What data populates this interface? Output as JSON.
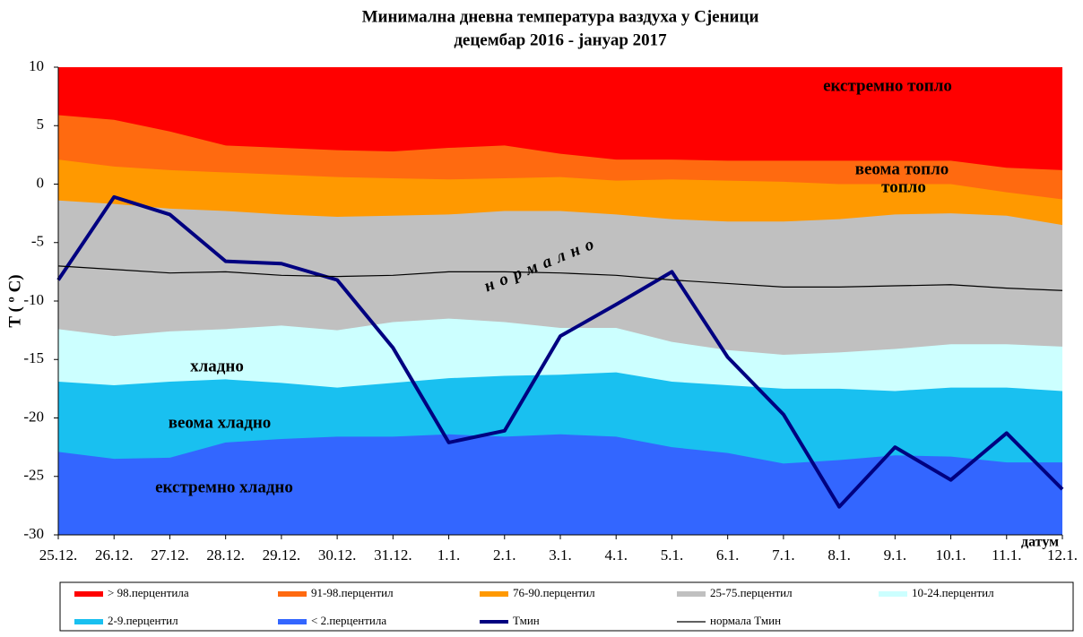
{
  "chart_data": {
    "type": "band",
    "title": "Минимална дневна температура ваздуха у Сјеници",
    "subtitle": "децембар 2016 - јануар 2017",
    "y_label": "T ( º C)",
    "x_label": "датум",
    "categories": [
      "25.12.",
      "26.12.",
      "27.12.",
      "28.12.",
      "29.12.",
      "30.12.",
      "31.12.",
      "1.1.",
      "2.1.",
      "3.1.",
      "4.1.",
      "5.1.",
      "6.1.",
      "7.1.",
      "8.1.",
      "9.1.",
      "10.1.",
      "11.1.",
      "12.1."
    ],
    "ylim": [
      -30,
      10
    ],
    "yticks": [
      10,
      5,
      0,
      -5,
      -10,
      -15,
      -20,
      -25,
      -30
    ],
    "annotations": [
      "екстремно топло",
      "веома топло",
      "топло",
      "нормално",
      "хладно",
      "веома хладно",
      "екстремно хладно"
    ],
    "series": [
      {
        "name": "> 98.перцентила",
        "color": "#ff0000"
      },
      {
        "name": "91-98.перцентил",
        "color": "#ff6a10",
        "values": [
          5.9,
          5.5,
          4.5,
          3.3,
          3.1,
          2.9,
          2.8,
          3.1,
          3.3,
          2.6,
          2.1,
          2.1,
          2.0,
          2.0,
          2.0,
          2.0,
          2.0,
          1.4,
          1.2
        ]
      },
      {
        "name": "76-90.перцентил",
        "color": "#ff9900",
        "values": [
          2.1,
          1.5,
          1.2,
          1.0,
          0.8,
          0.6,
          0.5,
          0.4,
          0.5,
          0.6,
          0.3,
          0.4,
          0.3,
          0.2,
          0,
          0,
          0,
          -0.7,
          -1.3
        ]
      },
      {
        "name": "25-75.перцентил",
        "color": "#c0c0c0",
        "values": [
          -1.4,
          -1.7,
          -2.1,
          -2.3,
          -2.6,
          -2.8,
          -2.7,
          -2.6,
          -2.3,
          -2.3,
          -2.6,
          -3.0,
          -3.2,
          -3.2,
          -3.0,
          -2.6,
          -2.5,
          -2.7,
          -3.5
        ]
      },
      {
        "name": "10-24.перцентил",
        "color": "#ccffff",
        "values": [
          -12.4,
          -13.0,
          -12.6,
          -12.4,
          -12.1,
          -12.5,
          -11.8,
          -11.5,
          -11.8,
          -12.3,
          -12.3,
          -13.5,
          -14.2,
          -14.6,
          -14.4,
          -14.1,
          -13.7,
          -13.7,
          -13.9
        ]
      },
      {
        "name": "2-9.перцентил",
        "color": "#19c0f0",
        "values": [
          -16.9,
          -17.2,
          -16.9,
          -16.7,
          -17.0,
          -17.4,
          -17.0,
          -16.6,
          -16.4,
          -16.3,
          -16.1,
          -16.9,
          -17.2,
          -17.5,
          -17.5,
          -17.7,
          -17.4,
          -17.4,
          -17.7
        ]
      },
      {
        "name": "< 2.перцентила",
        "color": "#3366ff",
        "values": [
          -22.9,
          -23.5,
          -23.4,
          -22.1,
          -21.8,
          -21.6,
          -21.6,
          -21.4,
          -21.6,
          -21.4,
          -21.6,
          -22.5,
          -23.0,
          -23.9,
          -23.6,
          -23.2,
          -23.3,
          -23.8,
          -23.8
        ]
      },
      {
        "name": "Тмин",
        "type": "line",
        "color": "#000080",
        "values": [
          -8.2,
          -1.1,
          -2.6,
          -6.6,
          -6.8,
          -8.2,
          -14.0,
          -22.1,
          -21.1,
          -13.0,
          -10.3,
          -7.5,
          -14.8,
          -19.7,
          -27.6,
          -22.5,
          -25.3,
          -21.3,
          -26.1
        ]
      },
      {
        "name": "нормала  Тмин",
        "type": "line",
        "color": "#000000",
        "values": [
          -7.0,
          -7.3,
          -7.6,
          -7.5,
          -7.8,
          -7.9,
          -7.8,
          -7.5,
          -7.5,
          -7.6,
          -7.8,
          -8.2,
          -8.5,
          -8.8,
          -8.8,
          -8.7,
          -8.6,
          -8.9,
          -9.1
        ]
      }
    ]
  }
}
